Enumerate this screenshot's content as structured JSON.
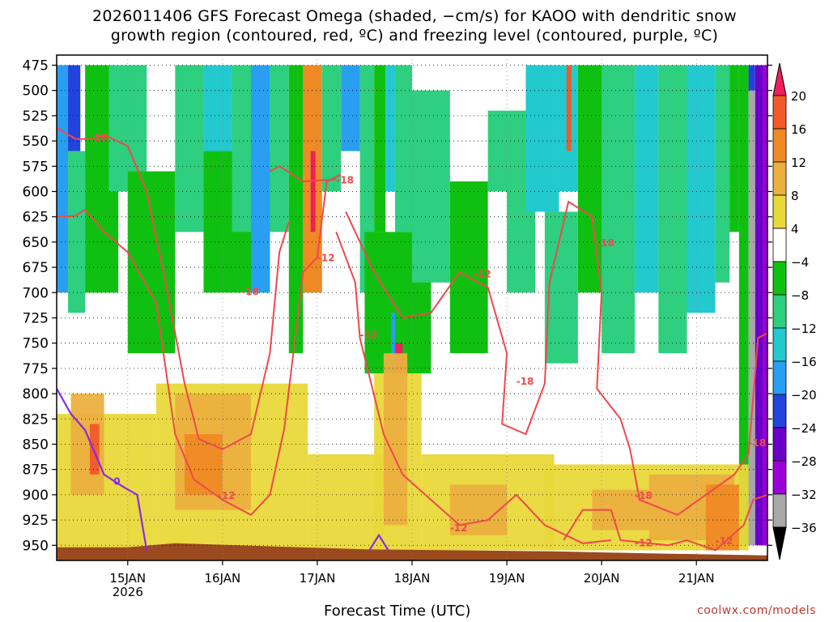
{
  "chart_data": {
    "type": "heatmap",
    "title": "2026011406 GFS Forecast Omega (shaded, −cm/s) for KAOO with dendritic snow\ngrowth region (contoured, red, ºC) and freezing level (contoured, purple, ºC)",
    "xlabel": "Forecast Time (UTC)",
    "ylabel": "",
    "y_axis": {
      "scale": "pressure",
      "reversed": true,
      "ylim": [
        965,
        465
      ],
      "ticks": [
        "475",
        "500",
        "525",
        "550",
        "575",
        "600",
        "625",
        "650",
        "675",
        "700",
        "725",
        "750",
        "775",
        "800",
        "825",
        "850",
        "875",
        "900",
        "925",
        "950"
      ]
    },
    "x_axis": {
      "ticks": [
        {
          "label": "15JAN",
          "sub": "2026",
          "day": 15
        },
        {
          "label": "16JAN",
          "sub": "",
          "day": 16
        },
        {
          "label": "17JAN",
          "sub": "",
          "day": 17
        },
        {
          "label": "18JAN",
          "sub": "",
          "day": 18
        },
        {
          "label": "19JAN",
          "sub": "",
          "day": 19
        },
        {
          "label": "20JAN",
          "sub": "",
          "day": 20
        },
        {
          "label": "21JAN",
          "sub": "",
          "day": 21
        }
      ],
      "xlim": [
        14.25,
        21.75
      ]
    },
    "colorbar": {
      "labels": [
        "20",
        "16",
        "12",
        "8",
        "4",
        "−4",
        "−8",
        "−12",
        "−16",
        "−20",
        "−24",
        "−28",
        "−32",
        "−36"
      ],
      "colors": [
        "#ef1f5a",
        "#f25a2a",
        "#ef8a24",
        "#ebb040",
        "#e9d83a",
        "#ffffff",
        "#10c010",
        "#2ecf7f",
        "#22c9cf",
        "#2a9ef0",
        "#2244dd",
        "#6b00c8",
        "#9c00d8",
        "#a8a8a8",
        "#000000"
      ]
    },
    "contour_labels": [
      {
        "text": "-18",
        "x": 14.6,
        "p": 546
      },
      {
        "text": "-18",
        "x": 16.2,
        "p": 698
      },
      {
        "text": "-18",
        "x": 17.2,
        "p": 588
      },
      {
        "text": "-12",
        "x": 17.0,
        "p": 665
      },
      {
        "text": "-12",
        "x": 17.45,
        "p": 741
      },
      {
        "text": "-12",
        "x": 18.65,
        "p": 681
      },
      {
        "text": "-18",
        "x": 19.1,
        "p": 787
      },
      {
        "text": "-18",
        "x": 19.95,
        "p": 650
      },
      {
        "text": "-12",
        "x": 15.95,
        "p": 900
      },
      {
        "text": "-12",
        "x": 18.4,
        "p": 932
      },
      {
        "text": "-18",
        "x": 20.35,
        "p": 900
      },
      {
        "text": "-12",
        "x": 20.35,
        "p": 947
      },
      {
        "text": "-12",
        "x": 21.2,
        "p": 945
      },
      {
        "text": "-18",
        "x": 21.55,
        "p": 848
      }
    ],
    "freezing_label": {
      "text": "0",
      "x": 14.85,
      "p": 886
    }
  },
  "credit": "coolwx.com/models"
}
